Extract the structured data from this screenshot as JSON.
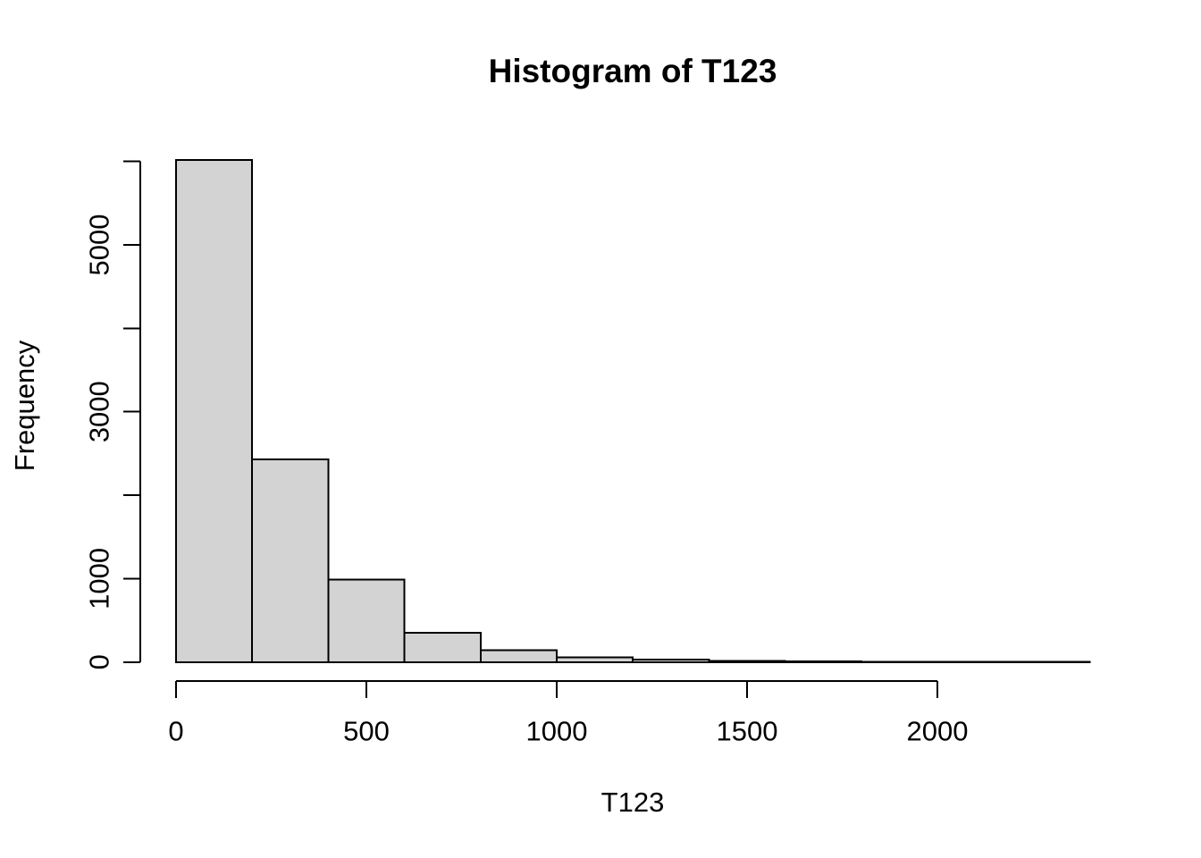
{
  "figure": {
    "title": "Histogram of T123",
    "x_axis_label": "T123",
    "y_axis_label": "Frequency"
  },
  "chart_data": {
    "type": "bar",
    "chart_kind": "histogram",
    "title": "Histogram of T123",
    "xlabel": "T123",
    "ylabel": "Frequency",
    "bin_width": 200,
    "bin_edges": [
      0,
      200,
      400,
      600,
      800,
      1000,
      1200,
      1400,
      1600,
      1800,
      2000,
      2200,
      2400
    ],
    "counts": [
      6020,
      2430,
      990,
      350,
      140,
      55,
      30,
      15,
      8,
      4,
      2,
      1
    ],
    "x_tick_values": [
      0,
      500,
      1000,
      1500,
      2000
    ],
    "x_tick_labels": [
      "0",
      "500",
      "1000",
      "1500",
      "2000"
    ],
    "y_tick_values": [
      0,
      1000,
      2000,
      3000,
      4000,
      5000,
      6000
    ],
    "y_ticks_labeled": [
      0,
      1000,
      3000,
      5000
    ],
    "y_tick_labels_shown": [
      "0",
      "1000",
      "3000",
      "5000"
    ],
    "xlim": [
      0,
      2400
    ],
    "ylim": [
      0,
      6020
    ],
    "grid": false,
    "legend": "none",
    "colors": {
      "bar_fill": "#d3d3d3",
      "bar_border": "#000000",
      "axis": "#000000",
      "text": "#000000",
      "background": "#ffffff"
    }
  }
}
